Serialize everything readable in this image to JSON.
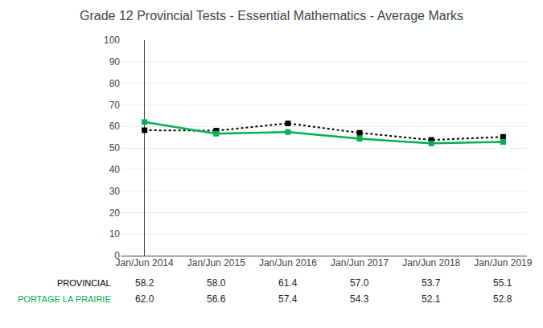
{
  "chart_data": {
    "type": "line",
    "title": "Grade 12 Provincial Tests - Essential Mathematics - Average Marks",
    "categories": [
      "Jan/Jun 2014",
      "Jan/Jun 2015",
      "Jan/Jun 2016",
      "Jan/Jun 2017",
      "Jan/Jun 2018",
      "Jan/Jun 2019"
    ],
    "series": [
      {
        "name": "PROVINCIAL",
        "color": "#000000",
        "line_style": "dotted",
        "marker": "square",
        "values": [
          58.2,
          58.0,
          61.4,
          57.0,
          53.7,
          55.1
        ],
        "value_labels": [
          "58.2",
          "58.0",
          "61.4",
          "57.0",
          "53.7",
          "55.1"
        ]
      },
      {
        "name": "PORTAGE LA PRAIRIE",
        "color": "#00b050",
        "line_style": "solid",
        "marker": "square",
        "values": [
          62.0,
          56.6,
          57.4,
          54.3,
          52.1,
          52.8
        ],
        "value_labels": [
          "62.0",
          "56.6",
          "57.4",
          "54.3",
          "52.1",
          "52.8"
        ]
      }
    ],
    "ylim": [
      0,
      100
    ],
    "yticks": [
      0,
      10,
      20,
      30,
      40,
      50,
      60,
      70,
      80,
      90,
      100
    ],
    "grid": true,
    "data_labels": true
  }
}
